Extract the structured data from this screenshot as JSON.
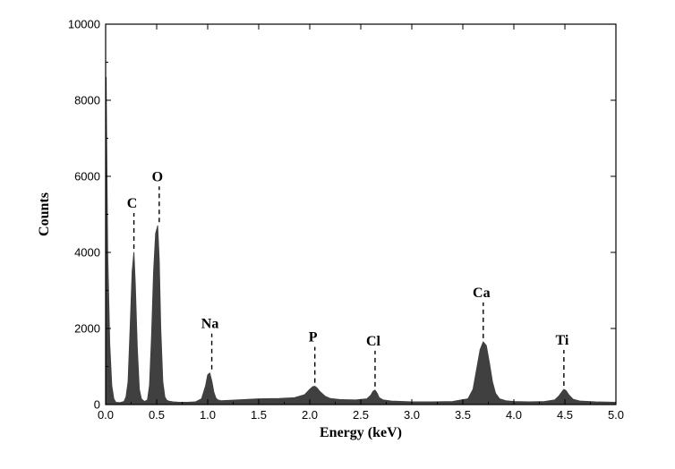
{
  "chart_data": {
    "type": "area",
    "xlabel": "Energy (keV)",
    "ylabel": "Counts",
    "xlim": [
      0.0,
      5.0
    ],
    "ylim": [
      0,
      10000
    ],
    "xticks": [
      "0.0",
      "0.5",
      "1.0",
      "1.5",
      "2.0",
      "2.5",
      "3.0",
      "3.5",
      "4.0",
      "4.5",
      "5.0"
    ],
    "yticks": [
      "0",
      "2000",
      "4000",
      "6000",
      "8000",
      "10000"
    ],
    "fill_color": "#404040",
    "grid": false,
    "legend": "none",
    "series": [
      {
        "x": [
          0.0,
          0.005,
          0.01,
          0.02,
          0.04,
          0.06,
          0.08,
          0.1,
          0.14,
          0.18,
          0.2,
          0.22,
          0.24,
          0.26,
          0.277,
          0.29,
          0.31,
          0.33,
          0.35,
          0.38,
          0.41,
          0.43,
          0.45,
          0.47,
          0.49,
          0.51,
          0.525,
          0.54,
          0.56,
          0.58,
          0.6,
          0.62,
          0.66,
          0.72,
          0.8,
          0.88,
          0.94,
          0.98,
          1.0,
          1.02,
          1.04,
          1.06,
          1.08,
          1.1,
          1.13,
          1.2,
          1.35,
          1.5,
          1.7,
          1.85,
          1.95,
          2.0,
          2.03,
          2.05,
          2.07,
          2.1,
          2.15,
          2.2,
          2.3,
          2.45,
          2.56,
          2.6,
          2.62,
          2.64,
          2.66,
          2.68,
          2.72,
          2.8,
          3.0,
          3.2,
          3.4,
          3.55,
          3.6,
          3.64,
          3.67,
          3.7,
          3.73,
          3.76,
          3.79,
          3.82,
          3.86,
          3.92,
          4.0,
          4.15,
          4.3,
          4.4,
          4.44,
          4.47,
          4.49,
          4.51,
          4.54,
          4.58,
          4.65,
          4.8,
          5.0
        ],
        "y": [
          8600,
          8600,
          7000,
          4000,
          1600,
          500,
          150,
          60,
          50,
          80,
          200,
          600,
          2000,
          3500,
          4000,
          3200,
          1500,
          400,
          150,
          80,
          120,
          500,
          1800,
          3500,
          4500,
          4700,
          3800,
          2000,
          600,
          200,
          110,
          90,
          70,
          60,
          60,
          70,
          150,
          500,
          780,
          830,
          620,
          330,
          170,
          120,
          100,
          110,
          130,
          150,
          160,
          180,
          260,
          400,
          470,
          480,
          440,
          340,
          220,
          160,
          130,
          120,
          150,
          250,
          350,
          380,
          300,
          180,
          120,
          90,
          70,
          70,
          80,
          150,
          400,
          1000,
          1450,
          1650,
          1550,
          1100,
          600,
          300,
          150,
          100,
          80,
          70,
          80,
          120,
          220,
          330,
          400,
          370,
          250,
          140,
          90,
          70,
          60
        ]
      }
    ],
    "annotations": [
      {
        "label": "C",
        "x": 0.277,
        "y": 4000
      },
      {
        "label": "O",
        "x": 0.525,
        "y": 4700
      },
      {
        "label": "Na",
        "x": 1.04,
        "y": 830
      },
      {
        "label": "P",
        "x": 2.05,
        "y": 480
      },
      {
        "label": "Cl",
        "x": 2.64,
        "y": 380
      },
      {
        "label": "Ca",
        "x": 3.7,
        "y": 1650
      },
      {
        "label": "Ti",
        "x": 4.49,
        "y": 400
      }
    ]
  }
}
